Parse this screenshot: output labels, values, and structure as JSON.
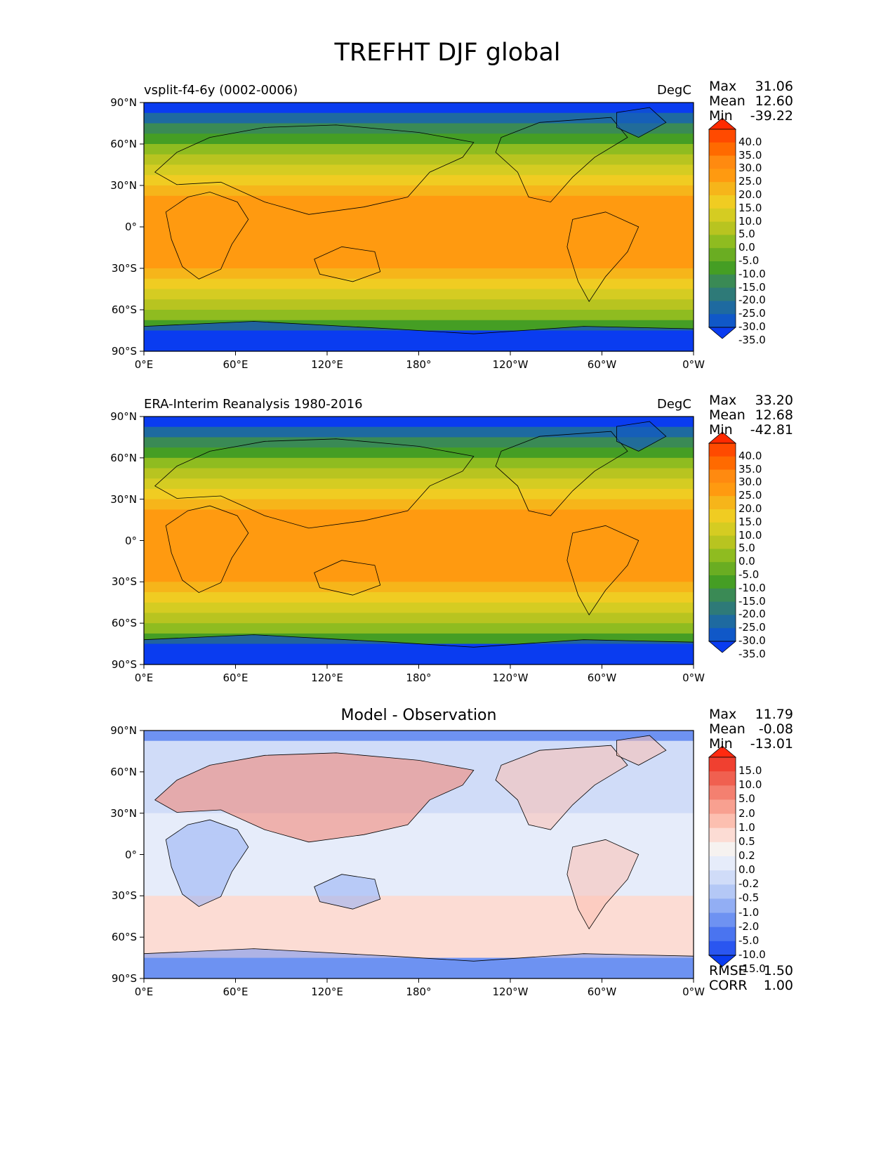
{
  "figure": {
    "title": "TREFHT DJF global"
  },
  "chart_data": [
    {
      "type": "heatmap",
      "title": "vsplit-f4-6y (0002-0006)",
      "units": "DegC",
      "stats": {
        "Max": "31.06",
        "Mean": "12.60",
        "Min": "-39.22"
      },
      "colorbar_levels": [
        "40.0",
        "35.0",
        "30.0",
        "25.0",
        "20.0",
        "15.0",
        "10.0",
        "5.0",
        "0.0",
        "-5.0",
        "-10.0",
        "-15.0",
        "-20.0",
        "-25.0",
        "-30.0",
        "-35.0"
      ],
      "colors": [
        "#ff2a00",
        "#ff4a00",
        "#ff6a00",
        "#ff8a10",
        "#ff9a10",
        "#f6b51a",
        "#f0cc22",
        "#d5cc22",
        "#b8c420",
        "#8fbc20",
        "#6aad22",
        "#459e24",
        "#3a8a55",
        "#2e7a78",
        "#1e6aa0",
        "#1058c8",
        "#0a3cf0"
      ],
      "x_ticks": [
        "0°E",
        "60°E",
        "120°E",
        "180°",
        "120°W",
        "60°W",
        "0°W"
      ],
      "y_ticks": [
        "90°N",
        "60°N",
        "30°N",
        "0°",
        "30°S",
        "60°S",
        "90°S"
      ]
    },
    {
      "type": "heatmap",
      "title": "ERA-Interim Reanalysis 1980-2016",
      "units": "DegC",
      "stats": {
        "Max": "33.20",
        "Mean": "12.68",
        "Min": "-42.81"
      },
      "colorbar_levels": [
        "40.0",
        "35.0",
        "30.0",
        "25.0",
        "20.0",
        "15.0",
        "10.0",
        "5.0",
        "0.0",
        "-5.0",
        "-10.0",
        "-15.0",
        "-20.0",
        "-25.0",
        "-30.0",
        "-35.0"
      ],
      "colors": [
        "#ff2a00",
        "#ff4a00",
        "#ff6a00",
        "#ff8a10",
        "#ff9a10",
        "#f6b51a",
        "#f0cc22",
        "#d5cc22",
        "#b8c420",
        "#8fbc20",
        "#6aad22",
        "#459e24",
        "#3a8a55",
        "#2e7a78",
        "#1e6aa0",
        "#1058c8",
        "#0a3cf0"
      ],
      "x_ticks": [
        "0°E",
        "60°E",
        "120°E",
        "180°",
        "120°W",
        "60°W",
        "0°W"
      ],
      "y_ticks": [
        "90°N",
        "60°N",
        "30°N",
        "0°",
        "30°S",
        "60°S",
        "90°S"
      ]
    },
    {
      "type": "heatmap",
      "title": "Model - Observation",
      "units": "",
      "stats": {
        "Max": "11.79",
        "Mean": "-0.08",
        "Min": "-13.01"
      },
      "colorbar_levels": [
        "15.0",
        "10.0",
        "5.0",
        "2.0",
        "1.0",
        "0.5",
        "0.2",
        "0.0",
        "-0.2",
        "-0.5",
        "-1.0",
        "-2.0",
        "-5.0",
        "-10.0",
        "-15.0"
      ],
      "colors": [
        "#ff2a10",
        "#f04030",
        "#f06050",
        "#f48070",
        "#f8a090",
        "#fcbfb0",
        "#fcdcd4",
        "#f6f2f0",
        "#e6ecfa",
        "#d0dcf8",
        "#b4c8f6",
        "#92aef4",
        "#6e92f2",
        "#4a74f0",
        "#2a56f0",
        "#0a3cf0"
      ],
      "x_ticks": [
        "0°E",
        "60°E",
        "120°E",
        "180°",
        "120°W",
        "60°W",
        "0°W"
      ],
      "y_ticks": [
        "90°N",
        "60°N",
        "30°N",
        "0°",
        "30°S",
        "60°S",
        "90°S"
      ],
      "metrics": {
        "RMSE": "1.50",
        "CORR": "1.00"
      }
    }
  ]
}
